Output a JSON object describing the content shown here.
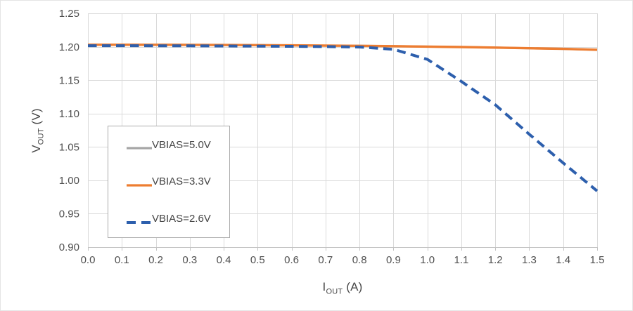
{
  "chart_data": {
    "type": "line",
    "title": "",
    "xlabel": {
      "base": "I",
      "sub": "OUT",
      "unit": " (A)"
    },
    "ylabel": {
      "base": "V",
      "sub": "OUT",
      "unit": " (V)"
    },
    "xlim": [
      0.0,
      1.5
    ],
    "ylim": [
      0.9,
      1.25
    ],
    "grid": true,
    "legend_position": "inside-left-middle",
    "x_ticks": [
      "0.0",
      "0.1",
      "0.2",
      "0.3",
      "0.4",
      "0.5",
      "0.6",
      "0.7",
      "0.8",
      "0.9",
      "1.0",
      "1.1",
      "1.2",
      "1.3",
      "1.4",
      "1.5"
    ],
    "y_ticks": [
      "0.90",
      "0.95",
      "1.00",
      "1.05",
      "1.10",
      "1.15",
      "1.20",
      "1.25"
    ],
    "x": [
      0.0,
      0.1,
      0.2,
      0.3,
      0.4,
      0.5,
      0.6,
      0.7,
      0.8,
      0.9,
      1.0,
      1.1,
      1.2,
      1.3,
      1.4,
      1.5
    ],
    "series": [
      {
        "name": "VBIAS=5.0V",
        "color": "#a6a6a6",
        "style": "solid",
        "width": 3,
        "values": [
          1.203,
          1.203,
          1.2029,
          1.2028,
          1.2026,
          1.2024,
          1.2021,
          1.2017,
          1.2013,
          1.2008,
          1.2002,
          1.1995,
          1.1987,
          1.1978,
          1.1968,
          1.1955
        ]
      },
      {
        "name": "VBIAS=3.3V",
        "color": "#ed7d31",
        "style": "solid",
        "width": 3.4,
        "values": [
          1.203,
          1.203,
          1.2029,
          1.2028,
          1.2026,
          1.2024,
          1.2021,
          1.2017,
          1.2013,
          1.2008,
          1.2002,
          1.1995,
          1.1987,
          1.1978,
          1.1968,
          1.1955
        ]
      },
      {
        "name": "VBIAS=2.6V",
        "color": "#2d5fad",
        "style": "dashed",
        "width": 4,
        "values": [
          1.2015,
          1.2015,
          1.2014,
          1.2013,
          1.2011,
          1.2009,
          1.2006,
          1.2002,
          1.1996,
          1.1962,
          1.181,
          1.148,
          1.113,
          1.069,
          1.026,
          0.984
        ]
      }
    ]
  },
  "colors": {
    "background": "#ffffff",
    "gridline": "#dadada",
    "axis_line": "#c3c3c3",
    "tick_text": "#4f4f4f",
    "title_text": "#474747",
    "legend_border": "#ababab"
  }
}
